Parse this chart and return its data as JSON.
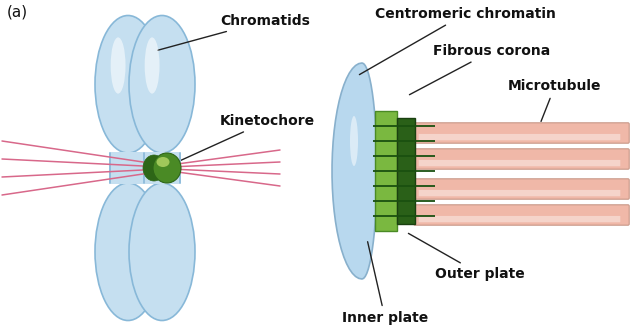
{
  "background_color": "#ffffff",
  "label_a": "(a)",
  "labels": {
    "chromatids": "Chromatids",
    "kinetochore": "Kinetochore",
    "centromeric_chromatin": "Centromeric chromatin",
    "fibrous_corona": "Fibrous corona",
    "microtubule": "Microtubule",
    "outer_plate": "Outer plate",
    "inner_plate": "Inner plate"
  },
  "colors": {
    "chromatid_fill": "#c5dff0",
    "chromatid_edge": "#88b8d8",
    "chromatid_light": "#deeef8",
    "kinetochore_dark": "#2d6617",
    "kinetochore_mid": "#4a8a25",
    "kinetochore_light": "#7ab840",
    "kinetochore_shine": "#aad060",
    "spindle_fiber": "#d8688a",
    "chromatin_fill": "#b8d8ee",
    "chromatin_edge": "#88b0cc",
    "inner_plate_fill": "#7ab840",
    "inner_plate_edge": "#4a8a25",
    "outer_plate_fill": "#2a6018",
    "outer_plate_edge": "#1a4010",
    "microtubule_fill": "#f0b8a8",
    "microtubule_edge": "#c89888",
    "green_lines": "#1a5010",
    "label_line": "#222222",
    "text_color": "#111111"
  },
  "font_size": 9.5,
  "font_family": "DejaVu Sans"
}
